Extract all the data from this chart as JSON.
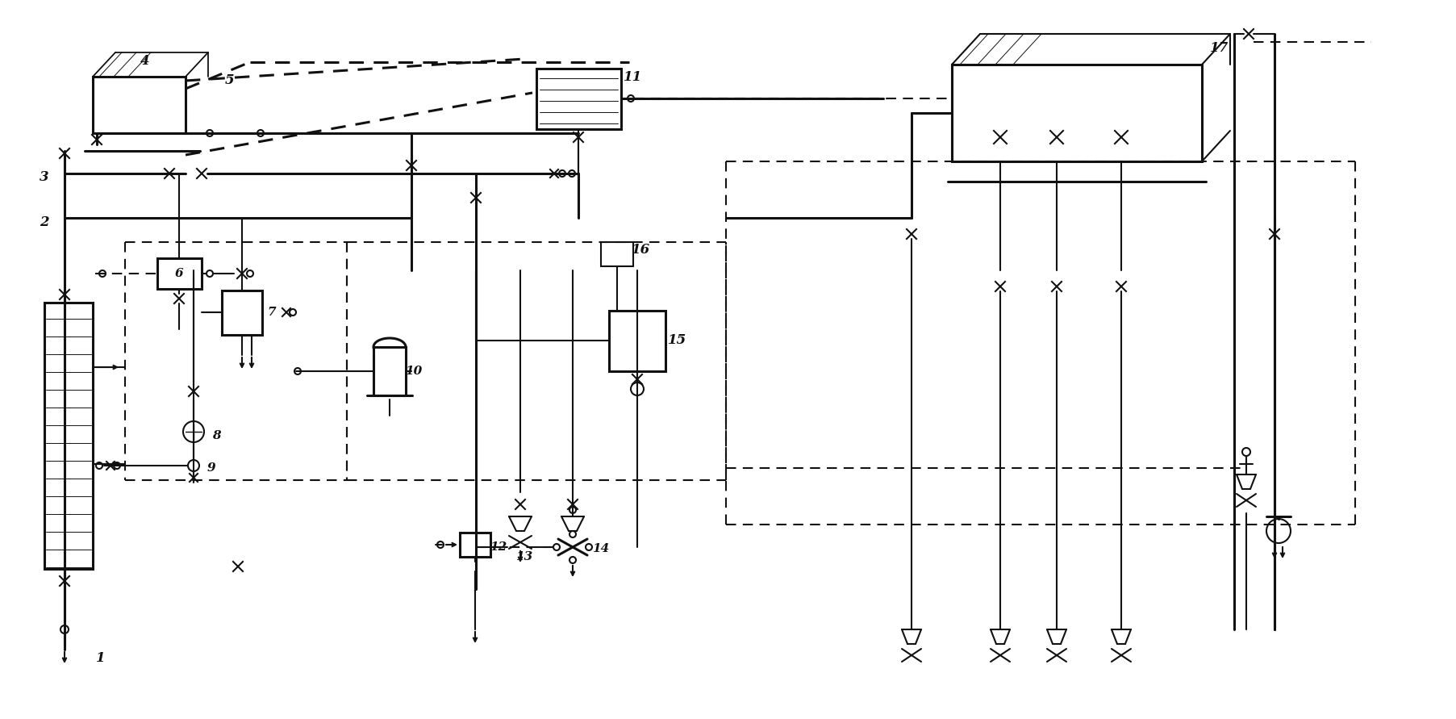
{
  "bg_color": "#ffffff",
  "lc": "#111111",
  "figsize": [
    18.05,
    8.91
  ],
  "dpi": 100,
  "lw": 1.5,
  "lw2": 2.2,
  "lw3": 1.0
}
